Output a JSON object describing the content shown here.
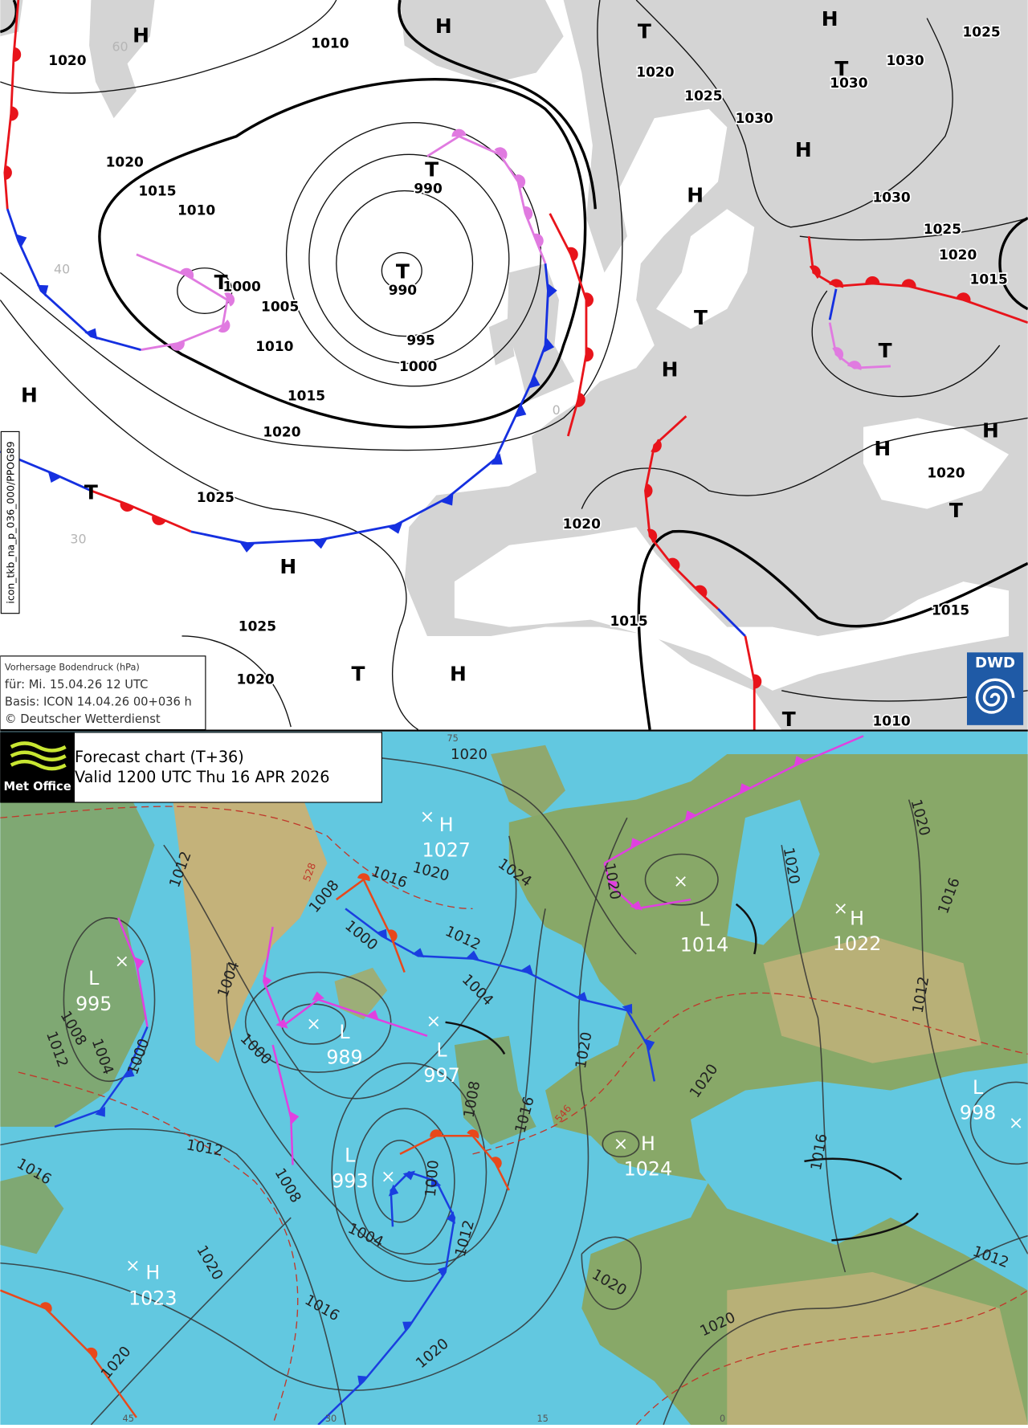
{
  "dwd": {
    "info": [
      "Vorhersage Bodendruck (hPa)",
      "für:  Mi. 15.04.26  12 UTC",
      "Basis: ICON  14.04.26 00+036 h",
      "© Deutscher Wetterdienst"
    ],
    "side_label": "icon_tkb_na_p_036_000/PPOG89",
    "logo": "DWD",
    "pressure_centers": [
      "H",
      "H",
      "T",
      "H",
      "T",
      "H",
      "H",
      "T",
      "T",
      "T",
      "T",
      "H",
      "H",
      "T",
      "H",
      "H",
      "T",
      "T",
      "H",
      "T",
      "H",
      "T"
    ],
    "isobar_labels": [
      "1020",
      "1010",
      "1020",
      "1025",
      "1030",
      "1030",
      "1030",
      "1025",
      "1020",
      "1015",
      "1010",
      "990",
      "990",
      "1000",
      "1005",
      "1010",
      "995",
      "1000",
      "1015",
      "1020",
      "1030",
      "1025",
      "1020",
      "1015",
      "1025",
      "1020",
      "1020",
      "1025",
      "1015",
      "1015",
      "1020",
      "1010"
    ],
    "grid_labels": [
      "60",
      "40",
      "30",
      "0"
    ]
  },
  "metoffice": {
    "logo": "Met Office",
    "title": "Forecast chart (T+36)",
    "valid": "Valid 1200 UTC Thu 16 APR 2026",
    "pressure_systems": [
      {
        "symbol": "H",
        "value": "1027"
      },
      {
        "symbol": "L",
        "value": "1014"
      },
      {
        "symbol": "H",
        "value": "1022"
      },
      {
        "symbol": "L",
        "value": "995"
      },
      {
        "symbol": "L",
        "value": "989"
      },
      {
        "symbol": "L",
        "value": "997"
      },
      {
        "symbol": "L",
        "value": "993"
      },
      {
        "symbol": "H",
        "value": "1024"
      },
      {
        "symbol": "L",
        "value": "998"
      },
      {
        "symbol": "H",
        "value": "1023"
      }
    ],
    "isobar_labels": [
      "1020",
      "1016",
      "1020",
      "1024",
      "1012",
      "1008",
      "1000",
      "1004",
      "1004",
      "1012",
      "1008",
      "1012",
      "1004",
      "1000",
      "1000",
      "1020",
      "1020",
      "1016",
      "1008",
      "1012",
      "1016",
      "1008",
      "1004",
      "1000",
      "1012",
      "1020",
      "1016",
      "1020",
      "1020",
      "1020",
      "1020",
      "1012",
      "1016",
      "1012",
      "1016",
      "1020",
      "1020",
      "1020"
    ],
    "thickness_labels": [
      "528",
      "546"
    ],
    "grid_labels": [
      "75",
      "45",
      "30",
      "15",
      "0"
    ]
  }
}
